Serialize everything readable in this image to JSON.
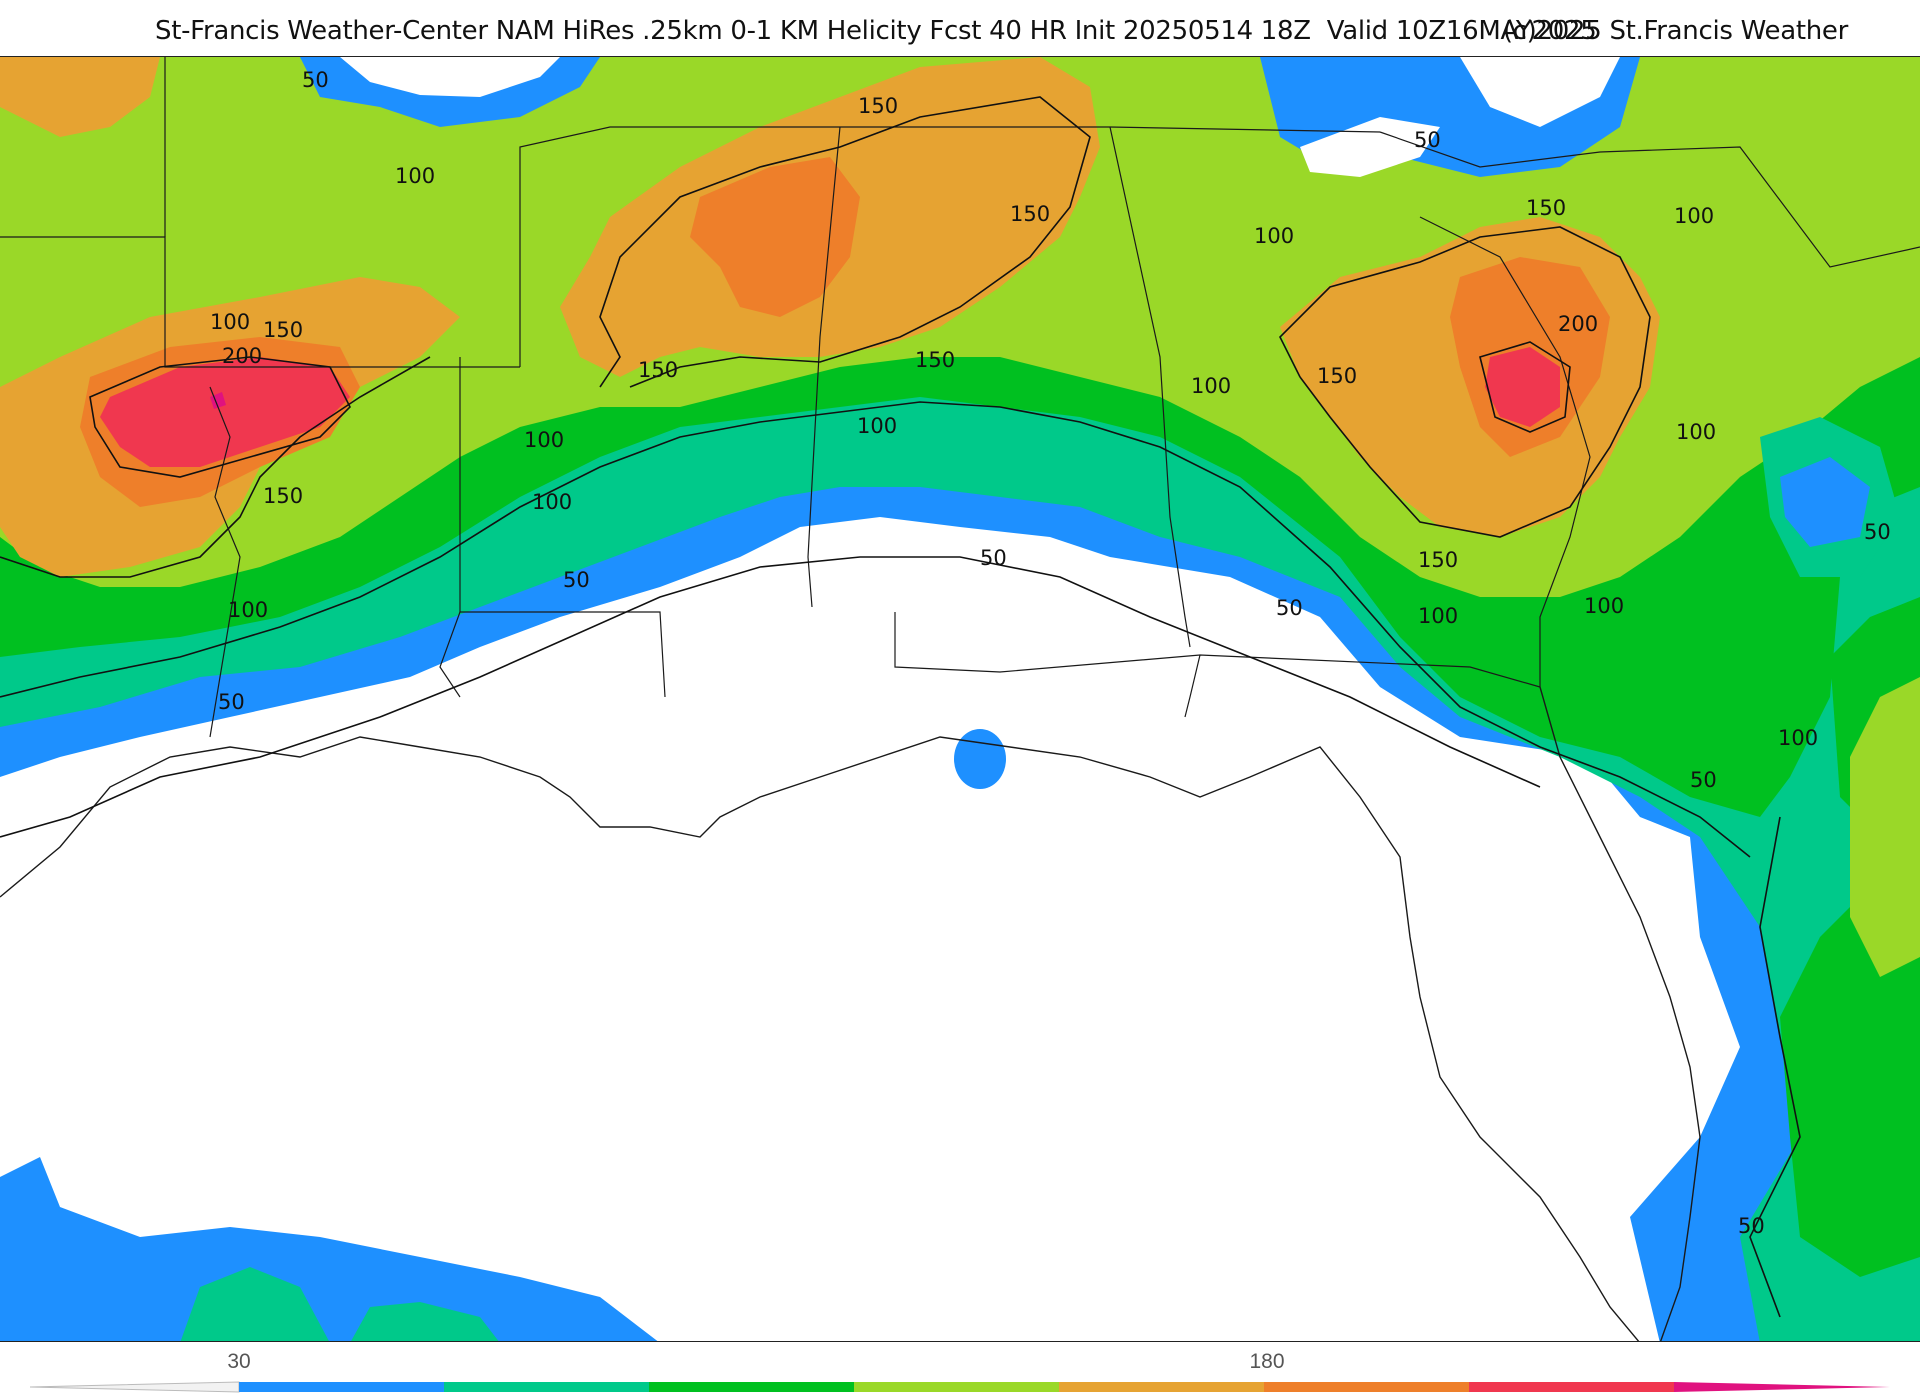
{
  "header": {
    "title": "St-Francis Weather-Center NAM HiRes .25km 0-1 KM Helicity Fcst 40 HR Init 20250514 18Z  Valid 10Z16MAY2025",
    "copyright": "(c)2025 St.Francis Weather"
  },
  "map": {
    "contour_labels": [
      "50",
      "100",
      "150",
      "200"
    ]
  },
  "legend": {
    "ticks": [
      {
        "label": "30",
        "value": 30
      },
      {
        "label": "180",
        "value": 180
      }
    ],
    "colors": [
      "#1e90ff",
      "#00c98a",
      "#00c020",
      "#9ad828",
      "#e6a332",
      "#ee7f2a",
      "#f0374f",
      "#e0127f"
    ]
  },
  "palette": {
    "ocean_bg": "#ffffff",
    "v50": "#1e90ff",
    "v75": "#00c98a",
    "v100": "#00c020",
    "v125": "#9ad828",
    "v150": "#e6a332",
    "v175": "#ee7f2a",
    "v200": "#f0374f",
    "v225": "#e0127f"
  }
}
